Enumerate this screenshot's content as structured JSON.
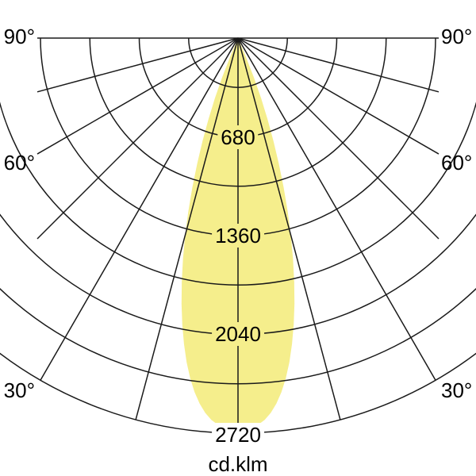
{
  "colors": {
    "background": "#FFFFFF",
    "grid_line": "#1A1A1A",
    "beam_fill": "#F5EE8C",
    "text": "#000000"
  },
  "chart_data": {
    "type": "polar",
    "description": "Luminous intensity distribution curve of a narrow-beam luminaire (polar photometric diagram, symmetric about nadir)",
    "unit_label": "cd.klm",
    "vmax": 2720,
    "radial_grid_values": [
      340,
      680,
      1020,
      1360,
      1700,
      2040,
      2380,
      2720
    ],
    "radial_tick_labels": [
      "680",
      "1360",
      "2040",
      "2720"
    ],
    "angle_grid_step_deg": 15,
    "angle_range_deg": [
      -90,
      90
    ],
    "angle_labels": {
      "left": [
        "90°",
        "60°",
        "30°"
      ],
      "right": [
        "90°",
        "60°",
        "30°"
      ]
    },
    "series": [
      {
        "name": "intensity-beam",
        "symmetric": true,
        "peak_value": 2700,
        "points_deg_value": [
          [
            0,
            2700
          ],
          [
            1,
            2695
          ],
          [
            2,
            2685
          ],
          [
            3,
            2665
          ],
          [
            4,
            2635
          ],
          [
            5,
            2590
          ],
          [
            6,
            2530
          ],
          [
            7,
            2455
          ],
          [
            8,
            2365
          ],
          [
            9,
            2260
          ],
          [
            10,
            2140
          ],
          [
            11,
            2010
          ],
          [
            12,
            1870
          ],
          [
            13,
            1720
          ],
          [
            14,
            1565
          ],
          [
            15,
            1405
          ],
          [
            16,
            1240
          ],
          [
            17,
            1075
          ],
          [
            18,
            910
          ],
          [
            19,
            750
          ],
          [
            20,
            595
          ],
          [
            21,
            445
          ],
          [
            22,
            290
          ],
          [
            23,
            120
          ],
          [
            23.5,
            0
          ]
        ]
      }
    ]
  }
}
